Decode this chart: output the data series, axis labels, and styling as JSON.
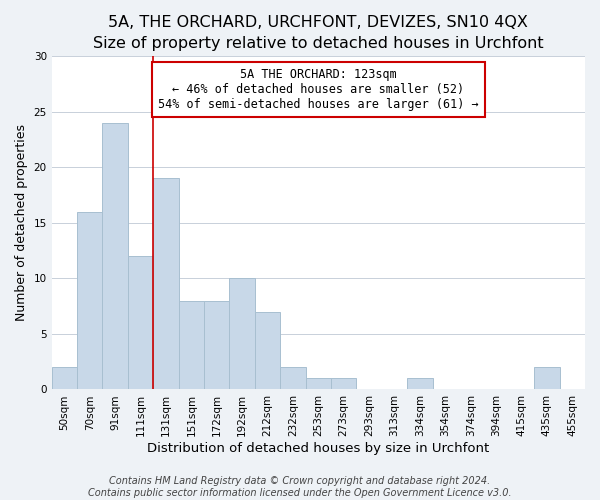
{
  "title": "5A, THE ORCHARD, URCHFONT, DEVIZES, SN10 4QX",
  "subtitle": "Size of property relative to detached houses in Urchfont",
  "xlabel": "Distribution of detached houses by size in Urchfont",
  "ylabel": "Number of detached properties",
  "bar_labels": [
    "50sqm",
    "70sqm",
    "91sqm",
    "111sqm",
    "131sqm",
    "151sqm",
    "172sqm",
    "192sqm",
    "212sqm",
    "232sqm",
    "253sqm",
    "273sqm",
    "293sqm",
    "313sqm",
    "334sqm",
    "354sqm",
    "374sqm",
    "394sqm",
    "415sqm",
    "435sqm",
    "455sqm"
  ],
  "bar_values": [
    2,
    16,
    24,
    12,
    19,
    8,
    8,
    10,
    7,
    2,
    1,
    1,
    0,
    0,
    1,
    0,
    0,
    0,
    0,
    2,
    0
  ],
  "bar_color": "#c8d8e8",
  "bar_edge_color": "#a8bfd0",
  "vline_color": "#cc0000",
  "annotation_line1": "5A THE ORCHARD: 123sqm",
  "annotation_line2": "← 46% of detached houses are smaller (52)",
  "annotation_line3": "54% of semi-detached houses are larger (61) →",
  "annotation_box_color": "#ffffff",
  "annotation_box_edge_color": "#cc0000",
  "ylim": [
    0,
    30
  ],
  "yticks": [
    0,
    5,
    10,
    15,
    20,
    25,
    30
  ],
  "footer_line1": "Contains HM Land Registry data © Crown copyright and database right 2024.",
  "footer_line2": "Contains public sector information licensed under the Open Government Licence v3.0.",
  "title_fontsize": 11.5,
  "subtitle_fontsize": 10,
  "xlabel_fontsize": 9.5,
  "ylabel_fontsize": 9,
  "tick_fontsize": 7.5,
  "annotation_fontsize": 8.5,
  "footer_fontsize": 7,
  "bg_color": "#eef2f6",
  "plot_bg_color": "#ffffff",
  "grid_color": "#c8d0da"
}
